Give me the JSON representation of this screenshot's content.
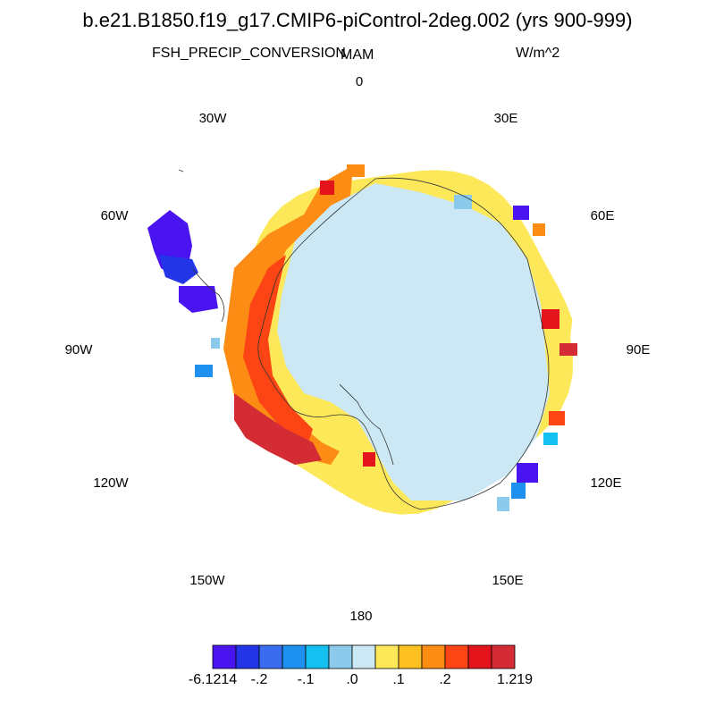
{
  "title": "b.e21.B1850.f19_g17.CMIP6-piControl-2deg.002 (yrs 900-999)",
  "variable": "FSH_PRECIP_CONVERSION",
  "season": "MAM",
  "units": "W/m^2",
  "projection": "south-polar-stereographic",
  "longitude_labels": [
    "0",
    "30E",
    "60E",
    "90E",
    "120E",
    "150E",
    "180",
    "150W",
    "120W",
    "90W",
    "60W",
    "30W"
  ],
  "colorbar": {
    "colors": [
      "#4a14f0",
      "#2236e8",
      "#3a6cf0",
      "#1e90f0",
      "#14c0f0",
      "#8ccaec",
      "#cce8f4",
      "#fde85a",
      "#fcc020",
      "#fc8c14",
      "#fc4414",
      "#e4141c",
      "#d42c34"
    ],
    "tick_labels": [
      "-6.1214",
      "-.2",
      "-.1",
      ".0",
      ".1",
      ".2",
      "1.219"
    ]
  },
  "chart_data": {
    "type": "heatmap",
    "title": "b.e21.B1850.f19_g17.CMIP6-piControl-2deg.002 (yrs 900-999)",
    "field": "FSH_PRECIP_CONVERSION",
    "season": "MAM",
    "units": "W/m^2",
    "value_range": [
      -6.1214,
      1.219
    ],
    "contour_levels": [
      -0.25,
      -0.2,
      -0.15,
      -0.1,
      -0.05,
      0.0,
      0.05,
      0.1,
      0.15,
      0.2,
      0.25,
      0.3
    ],
    "region": "Antarctica and surrounding ocean",
    "interior_value_class": ".0 to .05 (light blue)",
    "coastal_ring": [
      {
        "sector": "0 to 30E",
        "value_class": ".1 to .2"
      },
      {
        "sector": "60E",
        "value_class": "-6.1214 to -.25"
      },
      {
        "sector": "90E",
        "value_class": ".2 to 1.219"
      },
      {
        "sector": "120E",
        "value_class": "-6.1214 to -.1"
      },
      {
        "sector": "150E to 180",
        "value_class": ".1 to .15"
      },
      {
        "sector": "120W to 150W",
        "value_class": ".2 to 1.219"
      },
      {
        "sector": "90W to 120W",
        "value_class": ".2 to .3"
      },
      {
        "sector": "60W (Antarctic Peninsula)",
        "value_class": "-6.1214 to -.25"
      }
    ]
  }
}
